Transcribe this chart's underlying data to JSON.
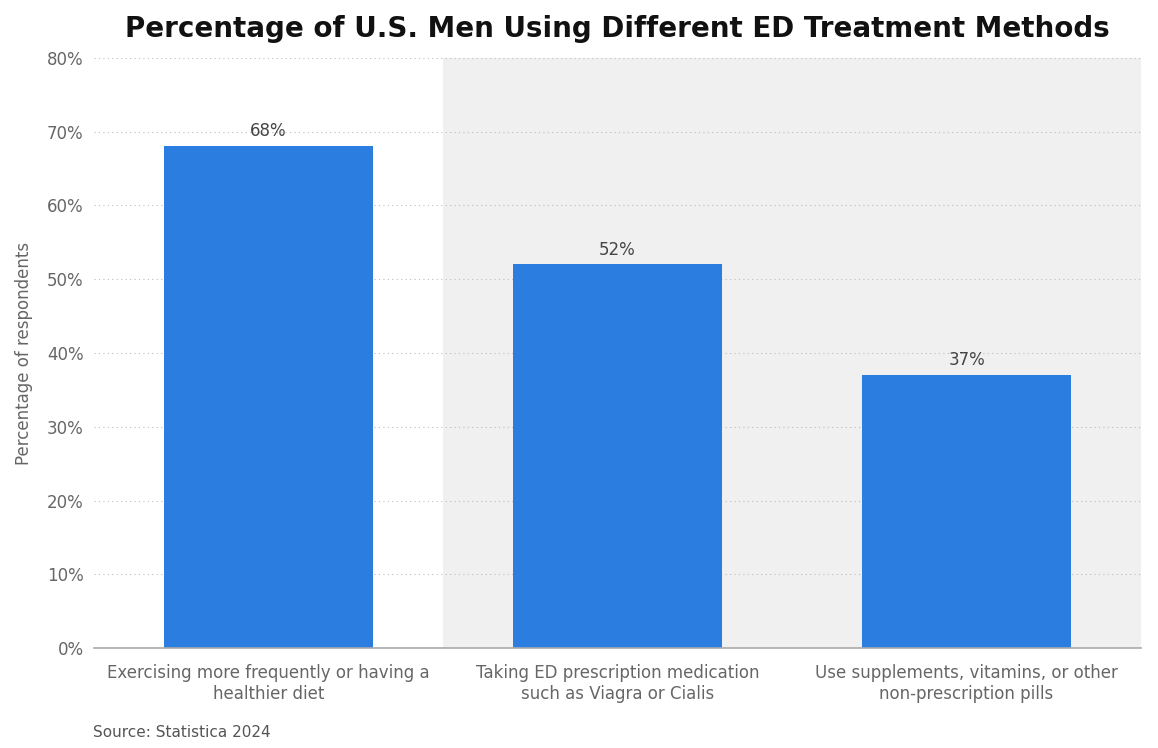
{
  "title": "Percentage of U.S. Men Using Different ED Treatment Methods",
  "ylabel": "Percentage of respondents",
  "categories": [
    "Exercising more frequently or having a\nhealthier diet",
    "Taking ED prescription medication\nsuch as Viagra or Cialis",
    "Use supplements, vitamins, or other\nnon-prescription pills"
  ],
  "values": [
    68,
    52,
    37
  ],
  "bar_color": "#2c7de0",
  "bar_width": 0.6,
  "ylim": [
    0,
    80
  ],
  "yticks": [
    0,
    10,
    20,
    30,
    40,
    50,
    60,
    70,
    80
  ],
  "ytick_labels": [
    "0%",
    "10%",
    "20%",
    "30%",
    "40%",
    "50%",
    "60%",
    "70%",
    "80%"
  ],
  "value_labels": [
    "68%",
    "52%",
    "37%"
  ],
  "source_text": "Source: Statistica 2024",
  "title_fontsize": 20,
  "ylabel_fontsize": 12,
  "tick_fontsize": 12,
  "annotation_fontsize": 12,
  "source_fontsize": 11,
  "bg_color_white": "#ffffff",
  "bg_color_gray": "#f0f0f0",
  "panel_colors": [
    "#ffffff",
    "#f0f0f0",
    "#f0f0f0"
  ],
  "grid_color": "#bbbbbb",
  "annotation_color": "#444444",
  "tick_color": "#666666",
  "spine_color": "#aaaaaa"
}
